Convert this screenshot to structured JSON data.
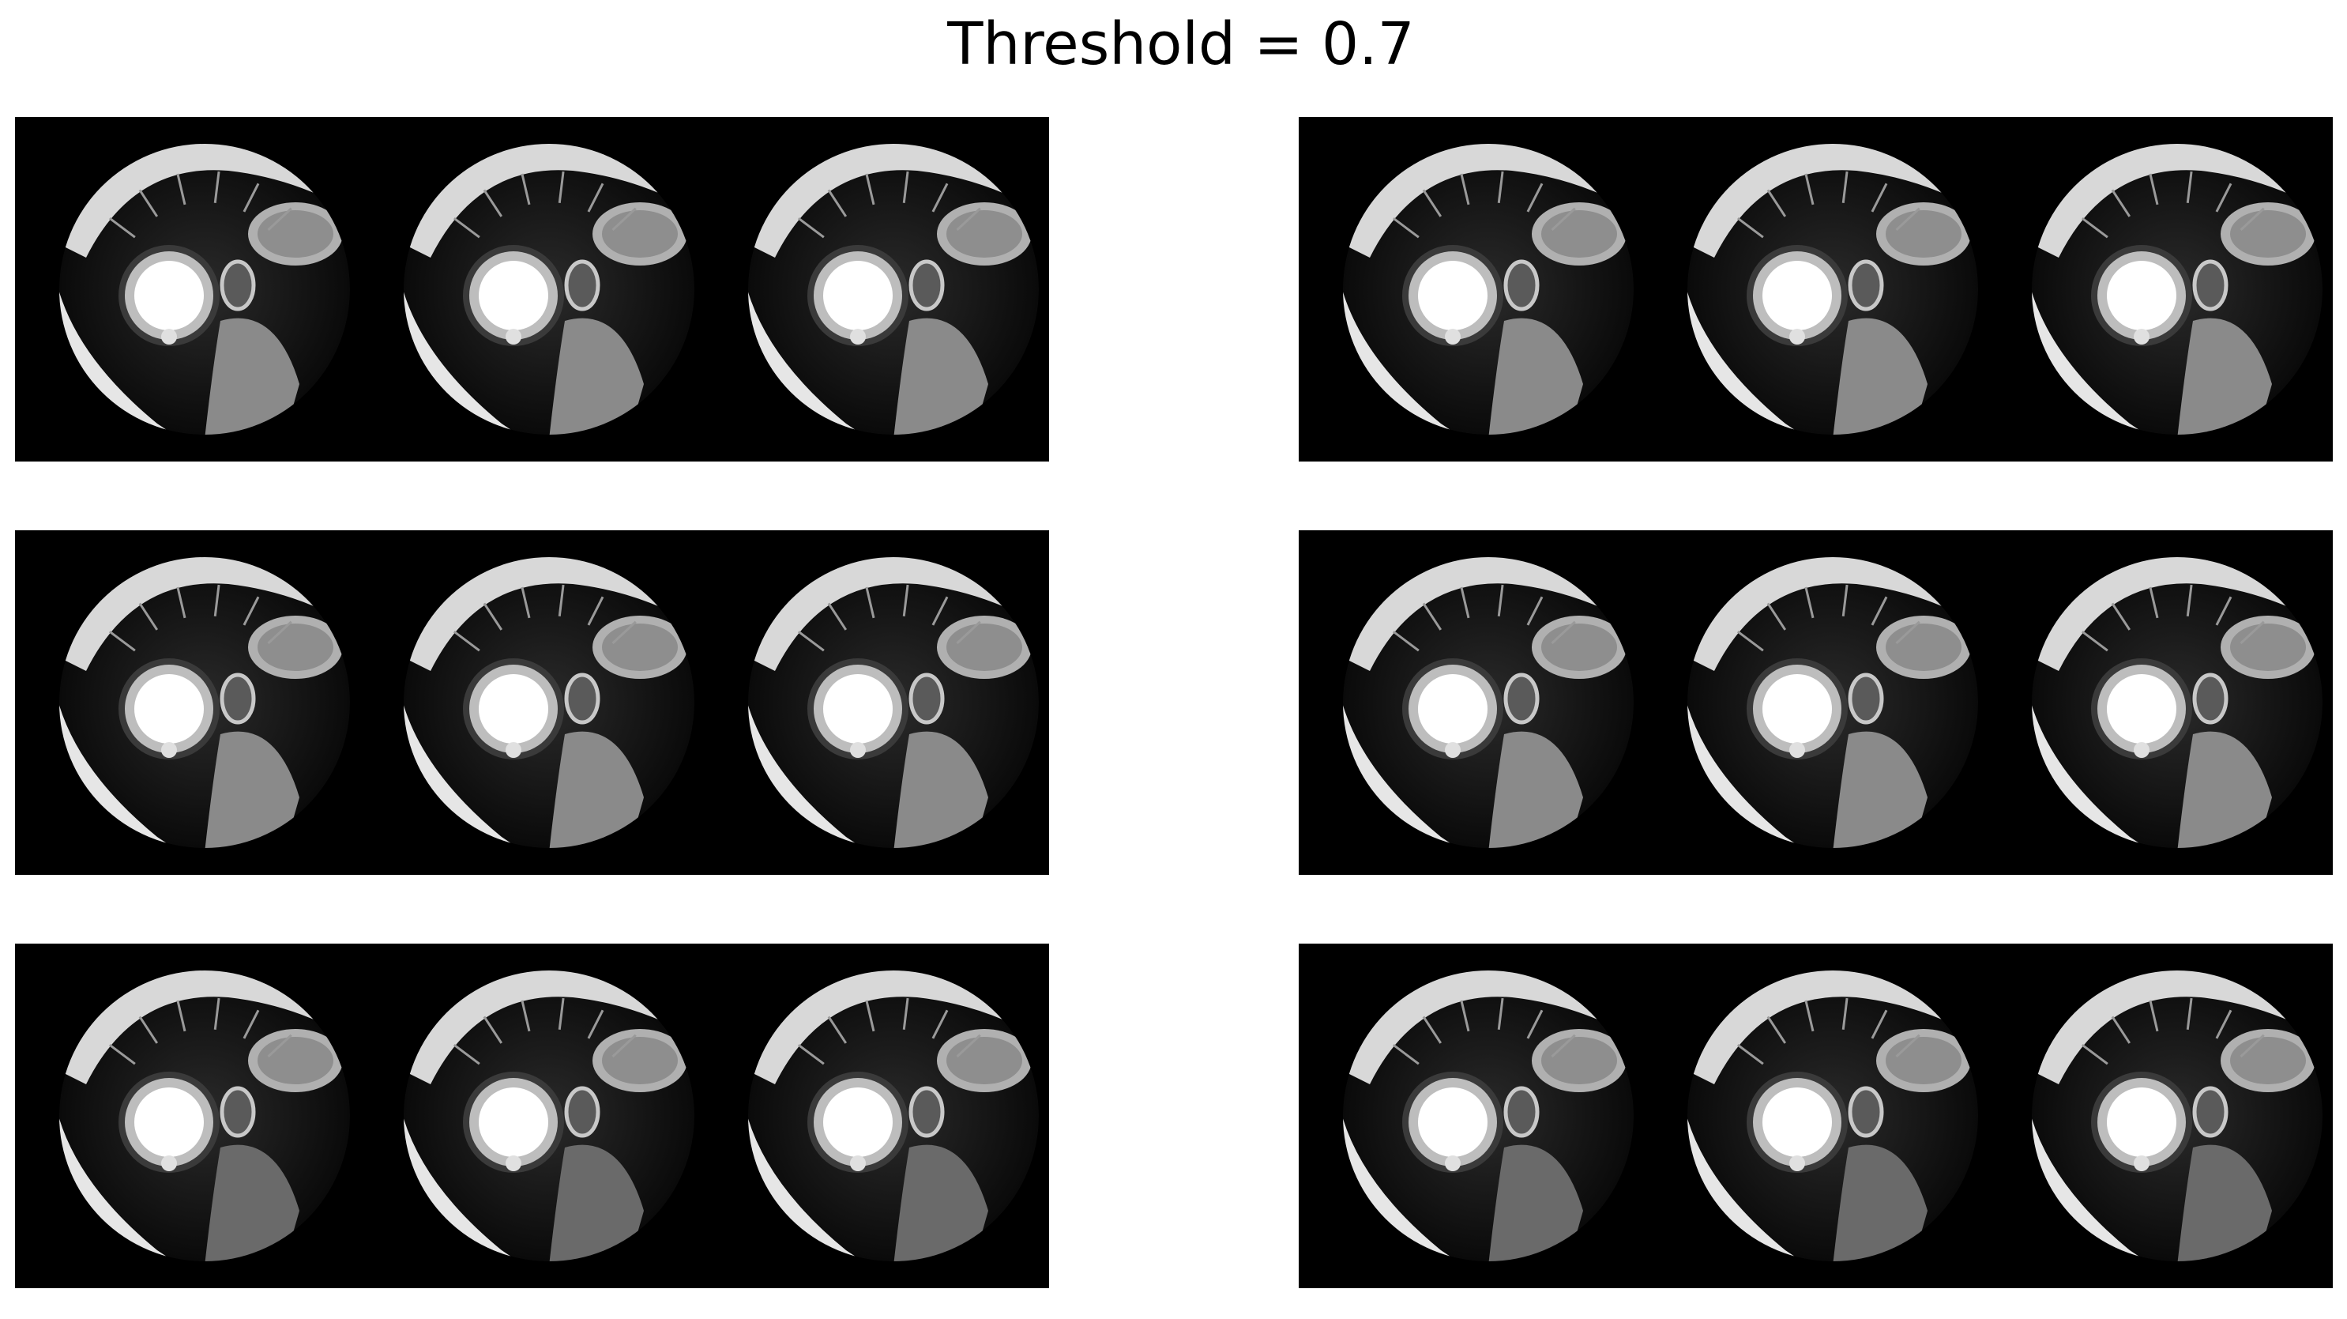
{
  "figure": {
    "title": "Threshold = 0.7"
  },
  "panels": [
    {
      "id": "top-left",
      "thumbnail_count": 3,
      "style": "bright-lv"
    },
    {
      "id": "top-right",
      "thumbnail_count": 3,
      "style": "bright-lv"
    },
    {
      "id": "middle-left",
      "thumbnail_count": 3,
      "style": "mid-slice"
    },
    {
      "id": "middle-right",
      "thumbnail_count": 3,
      "style": "mid-slice"
    },
    {
      "id": "bottom-left",
      "thumbnail_count": 3,
      "style": "apical"
    },
    {
      "id": "bottom-right",
      "thumbnail_count": 3,
      "style": "apical"
    }
  ],
  "colors": {
    "background": "#ffffff",
    "panel_background": "#000000",
    "title": "#000000"
  }
}
